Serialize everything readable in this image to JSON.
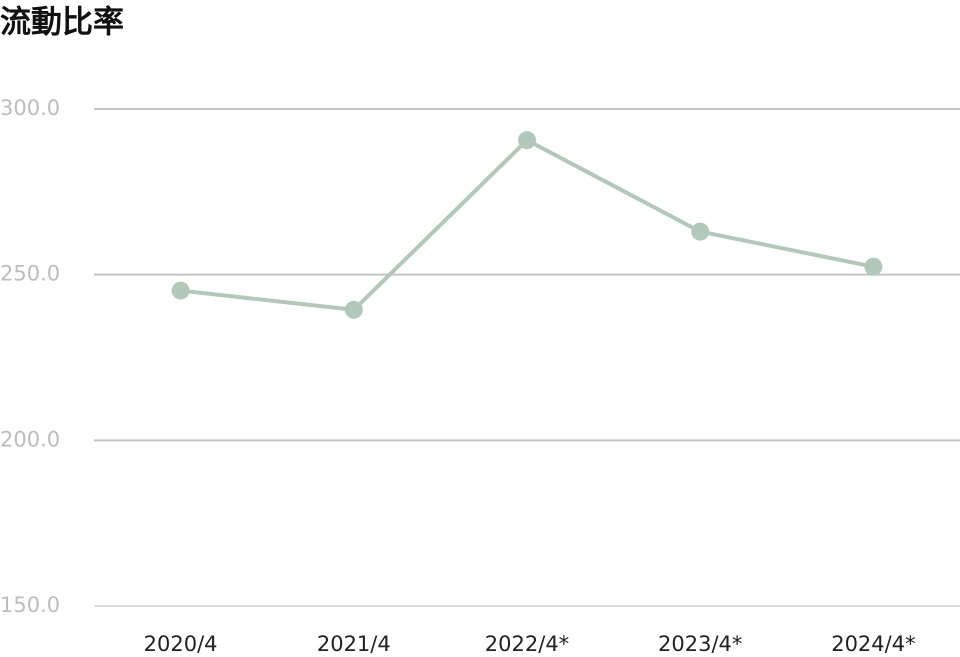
{
  "chart_data": {
    "type": "line",
    "title": "流動比率",
    "categories": [
      "2020/4",
      "2021/4",
      "2022/4*",
      "2023/4*",
      "2024/4*"
    ],
    "values": [
      245.2,
      239.4,
      290.6,
      263.0,
      252.4
    ],
    "color": "#b2c8b8",
    "ylim": [
      150,
      300
    ],
    "yticks": [
      {
        "value": 150,
        "label": "150.0"
      },
      {
        "value": 200,
        "label": "200.0"
      },
      {
        "value": 250,
        "label": "250.0"
      },
      {
        "value": 300,
        "label": "300.0"
      }
    ],
    "grid": true
  }
}
